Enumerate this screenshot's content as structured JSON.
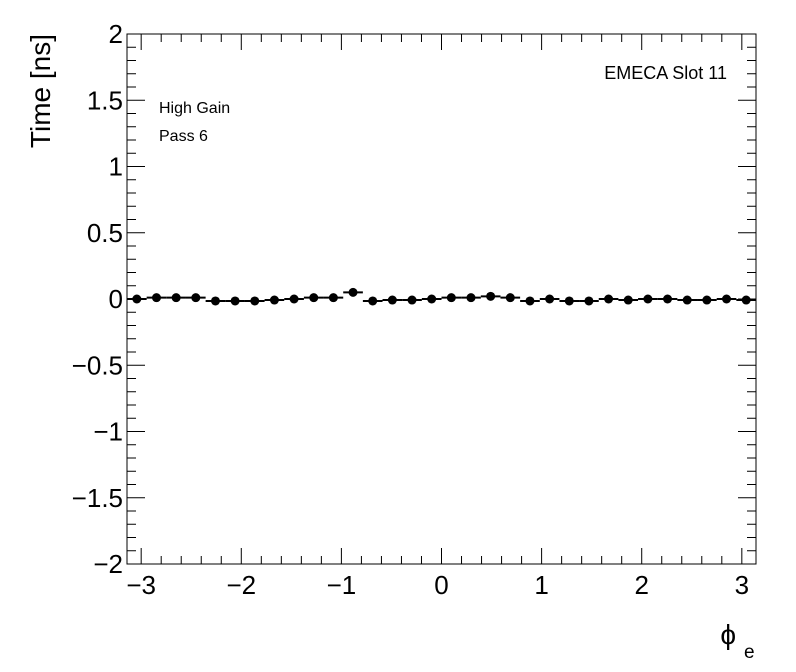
{
  "chart_data": {
    "type": "scatter",
    "title": "",
    "xlabel": "ϕ",
    "xlabel_sub": "e",
    "ylabel": "Time [ns]",
    "xlim": [
      -3.1416,
      3.1416
    ],
    "ylim": [
      -2,
      2
    ],
    "x_ticks": [
      -3,
      -2,
      -1,
      0,
      1,
      2,
      3
    ],
    "x_tick_labels": [
      "−3",
      "−2",
      "−1",
      "0",
      "1",
      "2",
      "3"
    ],
    "y_ticks": [
      -2,
      -1.5,
      -1,
      -0.5,
      0,
      0.5,
      1,
      1.5,
      2
    ],
    "y_tick_labels": [
      "−2",
      "−1.5",
      "−1",
      "−0.5",
      "0",
      "0.5",
      "1",
      "1.5",
      "2"
    ],
    "grid": false,
    "legend": "none",
    "annotations": {
      "top_right": "EMECA Slot 11",
      "line1": "High Gain",
      "line2": "Pass 6"
    },
    "marker_color": "#000000",
    "series": [
      {
        "x": [
          -3.0434,
          -2.8471,
          -2.6507,
          -2.4544,
          -2.258,
          -2.0617,
          -1.8653,
          -1.669,
          -1.4726,
          -1.2763,
          -1.0799,
          -0.8836,
          -0.6872,
          -0.4909,
          -0.2945,
          -0.0982,
          0.0982,
          0.2945,
          0.4909,
          0.6872,
          0.8836,
          1.0799,
          1.2763,
          1.4726,
          1.669,
          1.8653,
          2.0617,
          2.258,
          2.4544,
          2.6507,
          2.8471,
          3.0434
        ],
        "y": [
          0.0,
          0.01,
          0.01,
          0.01,
          -0.015,
          -0.015,
          -0.015,
          -0.008,
          0.0,
          0.01,
          0.01,
          0.05,
          -0.015,
          -0.008,
          -0.008,
          0.0,
          0.01,
          0.01,
          0.02,
          0.01,
          -0.015,
          0.0,
          -0.015,
          -0.015,
          0.0,
          -0.008,
          0.0,
          0.0,
          -0.008,
          -0.008,
          0.0,
          -0.008
        ]
      }
    ]
  }
}
